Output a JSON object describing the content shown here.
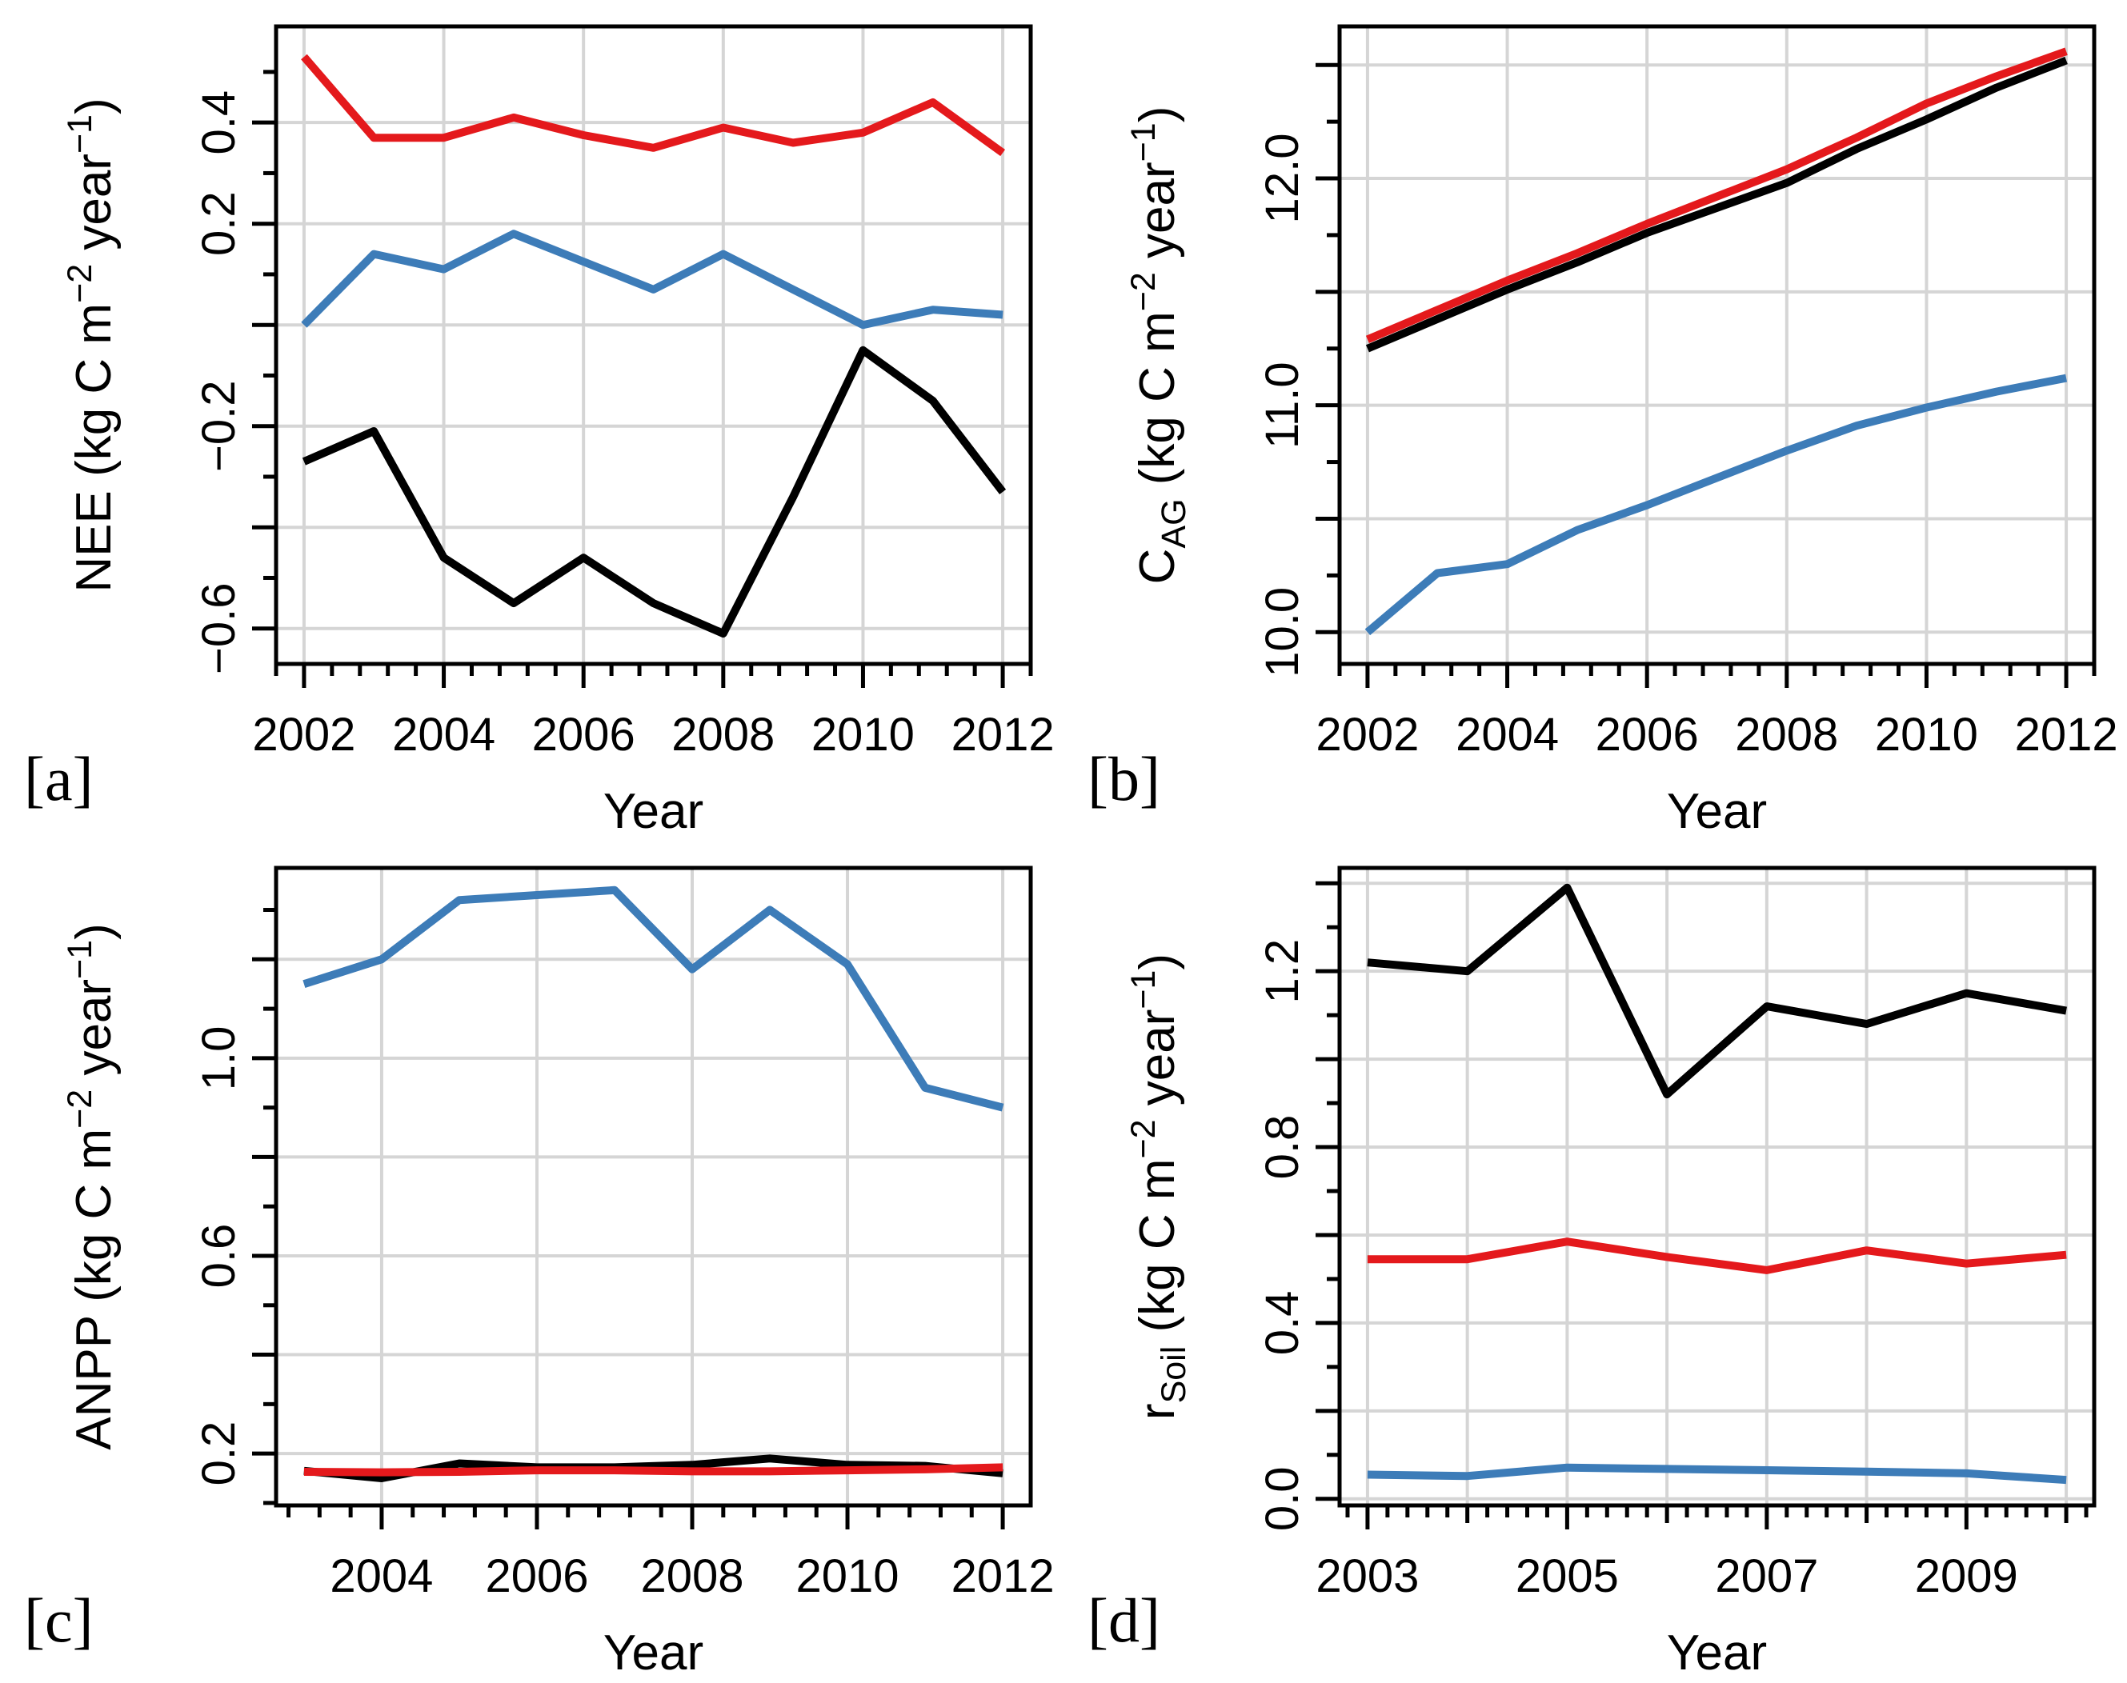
{
  "figure": {
    "background": "#ffffff",
    "grid_color": "#d5d5d5",
    "axis_color": "#000000",
    "series_line_width": 10,
    "box_line_width": 5,
    "grid_line_width": 4,
    "tick_line_width": 5
  },
  "chart_data": [
    {
      "id": "a",
      "type": "line",
      "corner_label": "[a]",
      "xlabel": "Year",
      "ylabel": "NEE (kg C m^-2 year^-1)",
      "ylabel_segments": [
        {
          "t": "NEE (kg C m"
        },
        {
          "t": "−2",
          "sup": 1
        },
        {
          "t": " year"
        },
        {
          "t": "−1",
          "sup": 1
        },
        {
          "t": ")"
        }
      ],
      "xlim": [
        2001.6,
        2012.4
      ],
      "ylim": [
        -0.67,
        0.59
      ],
      "x": [
        2002,
        2003,
        2004,
        2005,
        2006,
        2007,
        2008,
        2009,
        2010,
        2011,
        2012
      ],
      "series": [
        {
          "name": "blue",
          "color": "#3d7cb8",
          "values": [
            0.0,
            0.14,
            0.11,
            0.18,
            0.125,
            0.07,
            0.14,
            0.07,
            0.0,
            0.03,
            0.02
          ]
        },
        {
          "name": "black",
          "color": "#000000",
          "values": [
            -0.27,
            -0.21,
            -0.46,
            -0.55,
            -0.46,
            -0.55,
            -0.61,
            -0.34,
            -0.05,
            -0.15,
            -0.33
          ]
        },
        {
          "name": "red",
          "color": "#e4191c",
          "values": [
            0.53,
            0.37,
            0.37,
            0.41,
            0.375,
            0.35,
            0.39,
            0.36,
            0.38,
            0.44,
            0.34
          ]
        }
      ],
      "x_major_ticks": [
        2002,
        2004,
        2006,
        2008,
        2010,
        2012
      ],
      "x_mid_ticks": [],
      "x_minor_step": 0.4,
      "x_grid": [
        2002,
        2004,
        2006,
        2008,
        2010,
        2012
      ],
      "x_tick_labels": [
        {
          "v": 2002,
          "t": "2002"
        },
        {
          "v": 2004,
          "t": "2004"
        },
        {
          "v": 2006,
          "t": "2006"
        },
        {
          "v": 2008,
          "t": "2008"
        },
        {
          "v": 2010,
          "t": "2010"
        },
        {
          "v": 2012,
          "t": "2012"
        }
      ],
      "y_major_ticks": [
        0.4,
        0.2,
        0.0,
        -0.2,
        -0.4,
        -0.6
      ],
      "y_minor_ticks": [
        0.5,
        0.3,
        0.1,
        -0.1,
        -0.3,
        -0.5
      ],
      "y_tick_labels": [
        {
          "v": 0.4,
          "t": "0.4"
        },
        {
          "v": 0.2,
          "t": "0.2"
        },
        {
          "v": -0.2,
          "t": "−0.2"
        },
        {
          "v": -0.6,
          "t": "−0.6"
        }
      ]
    },
    {
      "id": "b",
      "type": "line",
      "corner_label": "[b]",
      "xlabel": "Year",
      "ylabel": "C_AG (kg C m^-2 year^-1)",
      "ylabel_segments": [
        {
          "t": "C"
        },
        {
          "t": "AG",
          "sub": 1
        },
        {
          "t": " (kg C m"
        },
        {
          "t": "−2",
          "sup": 1
        },
        {
          "t": " year"
        },
        {
          "t": "−1",
          "sup": 1
        },
        {
          "t": ")"
        }
      ],
      "xlim": [
        2001.6,
        2012.4
      ],
      "ylim": [
        9.86,
        12.67
      ],
      "x": [
        2002,
        2003,
        2004,
        2005,
        2006,
        2007,
        2008,
        2009,
        2010,
        2011,
        2012
      ],
      "series": [
        {
          "name": "blue",
          "color": "#3d7cb8",
          "values": [
            10.0,
            10.26,
            10.3,
            10.45,
            10.56,
            10.68,
            10.8,
            10.91,
            10.99,
            11.06,
            11.12
          ]
        },
        {
          "name": "black",
          "color": "#000000",
          "values": [
            11.25,
            11.38,
            11.51,
            11.63,
            11.76,
            11.87,
            11.98,
            12.13,
            12.26,
            12.4,
            12.52
          ]
        },
        {
          "name": "red",
          "color": "#e4191c",
          "values": [
            11.29,
            11.42,
            11.55,
            11.67,
            11.8,
            11.92,
            12.04,
            12.18,
            12.33,
            12.45,
            12.56
          ]
        }
      ],
      "x_major_ticks": [
        2002,
        2004,
        2006,
        2008,
        2010,
        2012
      ],
      "x_mid_ticks": [],
      "x_minor_step": 0.4,
      "x_grid": [
        2002,
        2004,
        2006,
        2008,
        2010,
        2012
      ],
      "x_tick_labels": [
        {
          "v": 2002,
          "t": "2002"
        },
        {
          "v": 2004,
          "t": "2004"
        },
        {
          "v": 2006,
          "t": "2006"
        },
        {
          "v": 2008,
          "t": "2008"
        },
        {
          "v": 2010,
          "t": "2010"
        },
        {
          "v": 2012,
          "t": "2012"
        }
      ],
      "y_major_ticks": [
        12.5,
        12.0,
        11.5,
        11.0,
        10.5,
        10.0
      ],
      "y_minor_ticks": [
        12.25,
        11.75,
        11.25,
        10.75,
        10.25
      ],
      "y_tick_labels": [
        {
          "v": 12.0,
          "t": "12.0"
        },
        {
          "v": 11.0,
          "t": "11.0"
        },
        {
          "v": 10.0,
          "t": "10.0"
        }
      ]
    },
    {
      "id": "c",
      "type": "line",
      "corner_label": "[c]",
      "xlabel": "Year",
      "ylabel": "ANPP (kg C m^-2 year^-1)",
      "ylabel_segments": [
        {
          "t": "ANPP (kg C m"
        },
        {
          "t": "−2",
          "sup": 1
        },
        {
          "t": " year"
        },
        {
          "t": "−1",
          "sup": 1
        },
        {
          "t": ")"
        }
      ],
      "xlim": [
        2002.64,
        2012.36
      ],
      "ylim": [
        0.095,
        1.385
      ],
      "x": [
        2003,
        2004,
        2005,
        2006,
        2007,
        2008,
        2009,
        2010,
        2011,
        2012
      ],
      "series": [
        {
          "name": "blue",
          "color": "#3d7cb8",
          "values": [
            1.15,
            1.2,
            1.32,
            1.33,
            1.34,
            1.18,
            1.3,
            1.19,
            0.94,
            0.9
          ]
        },
        {
          "name": "black",
          "color": "#000000",
          "values": [
            0.165,
            0.15,
            0.18,
            0.172,
            0.172,
            0.177,
            0.19,
            0.177,
            0.175,
            0.16
          ]
        },
        {
          "name": "red",
          "color": "#e4191c",
          "values": [
            0.163,
            0.162,
            0.163,
            0.166,
            0.166,
            0.164,
            0.164,
            0.166,
            0.168,
            0.172
          ]
        }
      ],
      "x_major_ticks": [
        2004,
        2006,
        2008,
        2010,
        2012
      ],
      "x_mid_ticks": [],
      "x_minor_step": 0.4,
      "x_grid": [
        2004,
        2006,
        2008,
        2010,
        2012
      ],
      "x_tick_labels": [
        {
          "v": 2004,
          "t": "2004"
        },
        {
          "v": 2006,
          "t": "2006"
        },
        {
          "v": 2008,
          "t": "2008"
        },
        {
          "v": 2010,
          "t": "2010"
        },
        {
          "v": 2012,
          "t": "2012"
        }
      ],
      "y_major_ticks": [
        1.2,
        1.0,
        0.8,
        0.6,
        0.4,
        0.2
      ],
      "y_minor_ticks": [
        1.3,
        1.1,
        0.9,
        0.7,
        0.5,
        0.3,
        0.1
      ],
      "y_tick_labels": [
        {
          "v": 1.0,
          "t": "1.0"
        },
        {
          "v": 0.6,
          "t": "0.6"
        },
        {
          "v": 0.2,
          "t": "0.2"
        }
      ]
    },
    {
      "id": "d",
      "type": "line",
      "corner_label": "[d]",
      "xlabel": "Year",
      "ylabel": "r_Soil (kg C m^-2 year^-1)",
      "ylabel_segments": [
        {
          "t": "r"
        },
        {
          "t": "Soil",
          "sub": 1
        },
        {
          "t": " (kg C m"
        },
        {
          "t": "−2",
          "sup": 1
        },
        {
          "t": " year"
        },
        {
          "t": "−1",
          "sup": 1
        },
        {
          "t": ")"
        }
      ],
      "xlim": [
        2002.72,
        2010.28
      ],
      "ylim": [
        -0.015,
        1.435
      ],
      "x": [
        2003,
        2004,
        2005,
        2006,
        2007,
        2008,
        2009,
        2010
      ],
      "series": [
        {
          "name": "blue",
          "color": "#3d7cb8",
          "values": [
            0.055,
            0.052,
            0.071,
            0.068,
            0.065,
            0.062,
            0.058,
            0.043
          ]
        },
        {
          "name": "black",
          "color": "#000000",
          "values": [
            1.22,
            1.2,
            1.39,
            0.92,
            1.12,
            1.08,
            1.15,
            1.11
          ]
        },
        {
          "name": "red",
          "color": "#e4191c",
          "values": [
            0.545,
            0.545,
            0.585,
            0.55,
            0.52,
            0.565,
            0.535,
            0.555
          ]
        }
      ],
      "x_major_ticks": [
        2003,
        2005,
        2007,
        2009
      ],
      "x_mid_ticks": [
        2004,
        2006,
        2008,
        2010
      ],
      "x_minor_step": 0.2,
      "x_grid": [
        2003,
        2004,
        2005,
        2006,
        2007,
        2008,
        2009,
        2010
      ],
      "x_tick_labels": [
        {
          "v": 2003,
          "t": "2003"
        },
        {
          "v": 2005,
          "t": "2005"
        },
        {
          "v": 2007,
          "t": "2007"
        },
        {
          "v": 2009,
          "t": "2009"
        }
      ],
      "y_major_ticks": [
        1.4,
        1.2,
        1.0,
        0.8,
        0.6,
        0.4,
        0.2,
        0.0
      ],
      "y_minor_ticks": [
        1.3,
        1.1,
        0.9,
        0.7,
        0.5,
        0.3,
        0.1
      ],
      "y_tick_labels": [
        {
          "v": 1.2,
          "t": "1.2"
        },
        {
          "v": 0.8,
          "t": "0.8"
        },
        {
          "v": 0.4,
          "t": "0.4"
        },
        {
          "v": 0.0,
          "t": "0.0"
        }
      ]
    }
  ]
}
